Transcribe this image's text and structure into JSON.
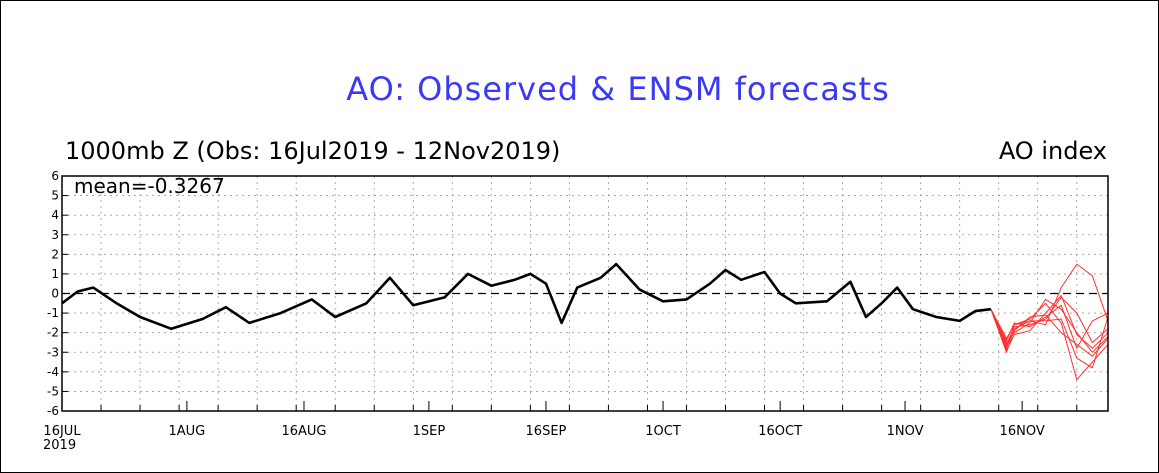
{
  "chart_data": {
    "type": "line",
    "title": "AO: Observed & ENSM forecasts",
    "subtitle_left": "1000mb Z (Obs: 16Jul2019 - 12Nov2019)",
    "subtitle_right": "AO index",
    "annotation": "mean=-0.3267",
    "ylim": [
      -6,
      6
    ],
    "yticks": [
      "6",
      "5",
      "4",
      "3",
      "2",
      "1",
      "0",
      "-1",
      "-2",
      "-3",
      "-4",
      "-5",
      "-6"
    ],
    "xlim": [
      "2019-07-16",
      "2019-11-27"
    ],
    "xticks": [
      {
        "label": "16JUL",
        "date": "2019-07-16"
      },
      {
        "label": "1AUG",
        "date": "2019-08-01"
      },
      {
        "label": "16AUG",
        "date": "2019-08-16"
      },
      {
        "label": "1SEP",
        "date": "2019-09-01"
      },
      {
        "label": "16SEP",
        "date": "2019-09-16"
      },
      {
        "label": "1OCT",
        "date": "2019-10-01"
      },
      {
        "label": "16OCT",
        "date": "2019-10-16"
      },
      {
        "label": "1NOV",
        "date": "2019-11-01"
      },
      {
        "label": "16NOV",
        "date": "2019-11-16"
      }
    ],
    "x_year_label": "2019",
    "grid": true,
    "zero_line": "dashed",
    "colors": {
      "observed": "#000000",
      "forecast": "#ff3030",
      "title": "#3a3af5"
    },
    "series": [
      {
        "role": "observed",
        "x": [
          "2019-07-16",
          "2019-07-18",
          "2019-07-20",
          "2019-07-23",
          "2019-07-26",
          "2019-07-30",
          "2019-08-03",
          "2019-08-06",
          "2019-08-09",
          "2019-08-13",
          "2019-08-17",
          "2019-08-20",
          "2019-08-24",
          "2019-08-27",
          "2019-08-30",
          "2019-09-03",
          "2019-09-06",
          "2019-09-09",
          "2019-09-12",
          "2019-09-14",
          "2019-09-16",
          "2019-09-18",
          "2019-09-20",
          "2019-09-23",
          "2019-09-25",
          "2019-09-28",
          "2019-10-01",
          "2019-10-04",
          "2019-10-07",
          "2019-10-09",
          "2019-10-11",
          "2019-10-14",
          "2019-10-16",
          "2019-10-18",
          "2019-10-22",
          "2019-10-25",
          "2019-10-27",
          "2019-10-29",
          "2019-10-31",
          "2019-11-02",
          "2019-11-05",
          "2019-11-08",
          "2019-11-10",
          "2019-11-12"
        ],
        "y": [
          -0.5,
          0.1,
          0.3,
          -0.5,
          -1.2,
          -1.8,
          -1.3,
          -0.7,
          -1.5,
          -1.0,
          -0.3,
          -1.2,
          -0.5,
          0.8,
          -0.6,
          -0.2,
          1.0,
          0.4,
          0.7,
          1.0,
          0.5,
          -1.5,
          0.3,
          0.8,
          1.5,
          0.2,
          -0.4,
          -0.3,
          0.5,
          1.2,
          0.7,
          1.1,
          0.0,
          -0.5,
          -0.4,
          0.6,
          -1.2,
          -0.5,
          0.3,
          -0.8,
          -1.2,
          -1.4,
          -0.9,
          -0.8
        ]
      },
      {
        "role": "forecast",
        "x": [
          "2019-11-12",
          "2019-11-14",
          "2019-11-15",
          "2019-11-17",
          "2019-11-19",
          "2019-11-21",
          "2019-11-23",
          "2019-11-25",
          "2019-11-27"
        ],
        "y": [
          -0.8,
          -3.0,
          -1.8,
          -1.4,
          -1.6,
          0.3,
          1.5,
          0.9,
          -1.4
        ]
      },
      {
        "role": "forecast",
        "x": [
          "2019-11-12",
          "2019-11-14",
          "2019-11-15",
          "2019-11-17",
          "2019-11-19",
          "2019-11-21",
          "2019-11-23",
          "2019-11-25",
          "2019-11-27"
        ],
        "y": [
          -0.8,
          -2.8,
          -1.6,
          -1.3,
          -0.5,
          -1.5,
          -4.4,
          -3.5,
          -2.6
        ]
      },
      {
        "role": "forecast",
        "x": [
          "2019-11-12",
          "2019-11-14",
          "2019-11-15",
          "2019-11-17",
          "2019-11-19",
          "2019-11-21",
          "2019-11-23",
          "2019-11-25",
          "2019-11-27"
        ],
        "y": [
          -0.8,
          -2.5,
          -2.0,
          -1.5,
          -0.3,
          -0.8,
          -2.0,
          -3.0,
          -2.2
        ]
      },
      {
        "role": "forecast",
        "x": [
          "2019-11-12",
          "2019-11-14",
          "2019-11-15",
          "2019-11-17",
          "2019-11-19",
          "2019-11-21",
          "2019-11-23",
          "2019-11-25",
          "2019-11-27"
        ],
        "y": [
          -0.8,
          -2.6,
          -1.7,
          -1.6,
          -1.3,
          -0.2,
          -1.0,
          -2.5,
          -1.8
        ]
      },
      {
        "role": "forecast",
        "x": [
          "2019-11-12",
          "2019-11-14",
          "2019-11-15",
          "2019-11-17",
          "2019-11-19",
          "2019-11-21",
          "2019-11-23",
          "2019-11-25",
          "2019-11-27"
        ],
        "y": [
          -0.8,
          -2.7,
          -1.9,
          -1.2,
          -1.1,
          -2.0,
          -2.6,
          -3.2,
          -2.3
        ]
      },
      {
        "role": "forecast",
        "x": [
          "2019-11-12",
          "2019-11-14",
          "2019-11-15",
          "2019-11-17",
          "2019-11-19",
          "2019-11-21",
          "2019-11-23",
          "2019-11-25",
          "2019-11-27"
        ],
        "y": [
          -0.8,
          -2.4,
          -1.5,
          -1.7,
          -1.2,
          -0.6,
          -2.8,
          -1.4,
          -1.0
        ]
      },
      {
        "role": "forecast",
        "x": [
          "2019-11-12",
          "2019-11-14",
          "2019-11-15",
          "2019-11-17",
          "2019-11-19",
          "2019-11-21",
          "2019-11-23",
          "2019-11-25",
          "2019-11-27"
        ],
        "y": [
          -0.8,
          -2.9,
          -2.1,
          -1.9,
          -1.0,
          -0.1,
          -2.1,
          -2.8,
          -2.0
        ]
      },
      {
        "role": "forecast",
        "x": [
          "2019-11-12",
          "2019-11-14",
          "2019-11-15",
          "2019-11-17",
          "2019-11-19",
          "2019-11-21",
          "2019-11-23",
          "2019-11-25",
          "2019-11-27"
        ],
        "y": [
          -0.8,
          -2.3,
          -1.6,
          -1.4,
          -1.4,
          -1.3,
          -3.3,
          -3.8,
          -1.2
        ]
      }
    ]
  }
}
